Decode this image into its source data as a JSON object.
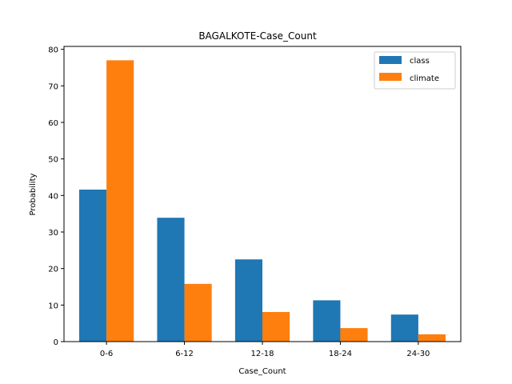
{
  "chart_data": {
    "type": "bar",
    "title": "BAGALKOTE-Case_Count",
    "xlabel": "Case_Count",
    "ylabel": "Probability",
    "categories": [
      "0-6",
      "6-12",
      "12-18",
      "18-24",
      "24-30"
    ],
    "series": [
      {
        "name": "class",
        "color": "#1f77b4",
        "values": [
          41.6,
          33.9,
          22.5,
          11.3,
          7.4
        ]
      },
      {
        "name": "climate",
        "color": "#ff7f0e",
        "values": [
          77.0,
          15.8,
          8.1,
          3.7,
          2.0
        ]
      }
    ],
    "ylim": [
      0,
      80.8
    ],
    "yticks": [
      0,
      10,
      20,
      30,
      40,
      50,
      60,
      70,
      80
    ],
    "legend": "top-right",
    "grid": false
  }
}
